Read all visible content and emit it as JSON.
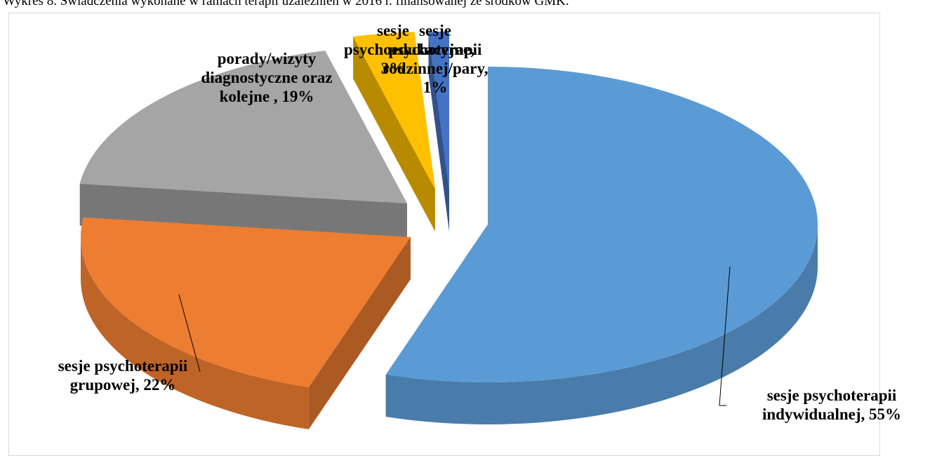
{
  "chart_data": {
    "type": "pie3d",
    "title": "Wykres 8. Świadczenia wykonane w ramach terapii uzależnień w 2016 r. finansowanej ze środków GMK.",
    "categories": [
      "sesje psychoterapii indywidualnej,",
      "sesje psychoterapii grupowej,",
      "porady/wizyty diagnostyczne oraz kolejne ,",
      "sesje psychoedukacyjne,",
      "sesje psychoterapii rodzinnej/pary,"
    ],
    "values": [
      55,
      22,
      19,
      3,
      1
    ],
    "value_labels": [
      "55%",
      "22%",
      "19%",
      "3%",
      "1%"
    ],
    "colors": [
      "#5b9bd5",
      "#ed7d31",
      "#a5a5a5",
      "#ffc000",
      "#4472c4"
    ]
  }
}
